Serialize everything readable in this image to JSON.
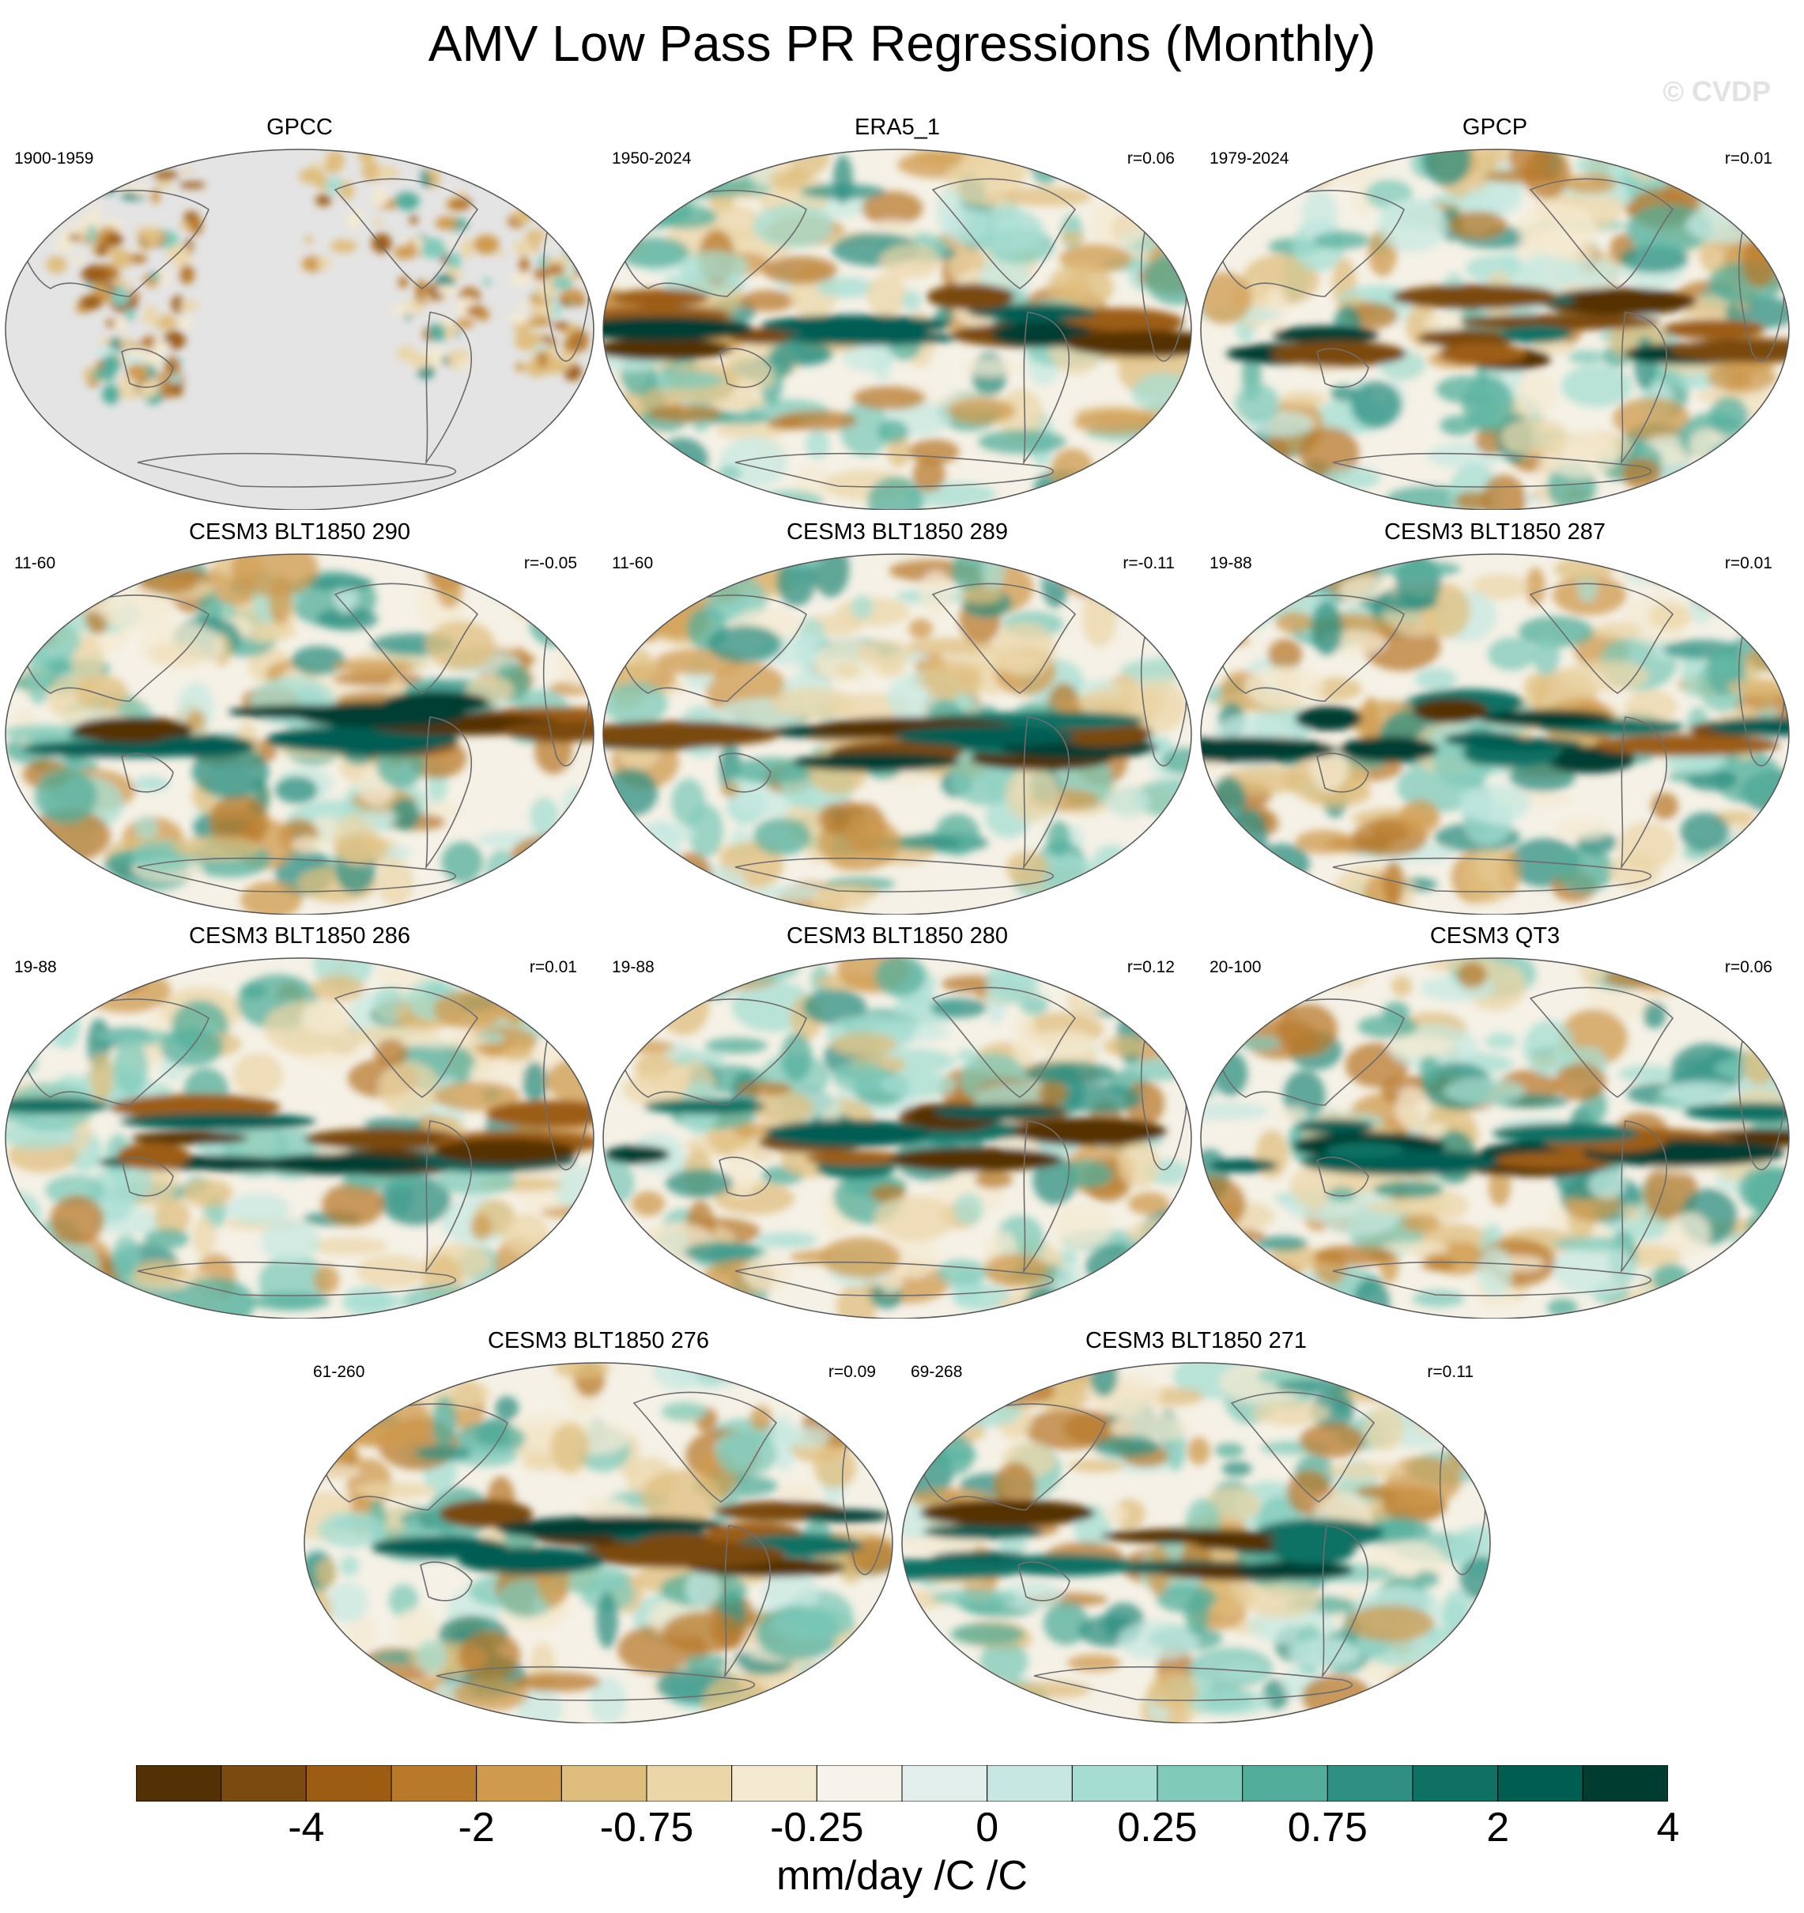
{
  "title": "AMV Low Pass PR Regressions (Monthly)",
  "watermark": "© CVDP",
  "panels": [
    {
      "name": "GPCC",
      "period": "1900-1959",
      "r": "",
      "land_only": true
    },
    {
      "name": "ERA5_1",
      "period": "1950-2024",
      "r": "r=0.06"
    },
    {
      "name": "GPCP",
      "period": "1979-2024",
      "r": "r=0.01"
    },
    {
      "name": "CESM3 BLT1850 290",
      "period": "11-60",
      "r": "r=-0.05"
    },
    {
      "name": "CESM3 BLT1850 289",
      "period": "11-60",
      "r": "r=-0.11"
    },
    {
      "name": "CESM3 BLT1850 287",
      "period": "19-88",
      "r": "r=0.01"
    },
    {
      "name": "CESM3 BLT1850 286",
      "period": "19-88",
      "r": "r=0.01"
    },
    {
      "name": "CESM3 BLT1850 280",
      "period": "19-88",
      "r": "r=0.12"
    },
    {
      "name": "CESM3 QT3",
      "period": "20-100",
      "r": "r=0.06"
    },
    {
      "name": "CESM3 BLT1850 276",
      "period": "61-260",
      "r": "r=0.09"
    },
    {
      "name": "CESM3 BLT1850 271",
      "period": "69-268",
      "r": "r=0.11"
    }
  ],
  "colorbar": {
    "colors": [
      "#543005",
      "#7a4a0f",
      "#9c5d12",
      "#b8792b",
      "#cf9a4e",
      "#dfbd7d",
      "#ebd6a8",
      "#f4ead2",
      "#f5f3ec",
      "#e2efec",
      "#c7e8e2",
      "#a6ddd3",
      "#7fcab9",
      "#53ad9b",
      "#2e8f82",
      "#0f7164",
      "#005d52",
      "#003c30"
    ],
    "tick_labels": [
      "-4",
      "-2",
      "-0.75",
      "-0.25",
      "0",
      "0.25",
      "0.75",
      "2",
      "4"
    ],
    "units": "mm/day /C /C"
  }
}
